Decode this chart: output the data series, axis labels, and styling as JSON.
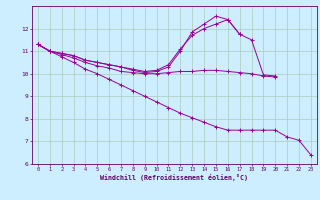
{
  "title": "",
  "xlabel": "Windchill (Refroidissement éolien,°C)",
  "ylabel": "",
  "background_color": "#cceeff",
  "line_color": "#990099",
  "grid_color": "#aaccbb",
  "xlim": [
    -0.5,
    23.5
  ],
  "ylim": [
    6,
    13
  ],
  "yticks": [
    6,
    7,
    8,
    9,
    10,
    11,
    12
  ],
  "xticks": [
    0,
    1,
    2,
    3,
    4,
    5,
    6,
    7,
    8,
    9,
    10,
    11,
    12,
    13,
    14,
    15,
    16,
    17,
    18,
    19,
    20,
    21,
    22,
    23
  ],
  "series": [
    {
      "x": [
        0,
        1,
        2,
        3,
        4,
        5,
        6,
        7,
        8,
        9,
        10,
        11,
        12,
        13,
        14,
        15,
        16,
        17,
        18,
        19,
        20
      ],
      "y": [
        11.3,
        11.0,
        10.9,
        10.8,
        10.6,
        10.5,
        10.4,
        10.3,
        10.2,
        10.1,
        10.15,
        10.4,
        11.1,
        11.7,
        12.0,
        12.2,
        12.4,
        11.75,
        11.5,
        9.95,
        9.9
      ]
    },
    {
      "x": [
        0,
        1,
        2,
        3,
        4,
        5,
        6,
        7,
        8,
        9,
        10,
        11,
        12,
        13,
        14,
        15,
        16,
        17
      ],
      "y": [
        11.3,
        11.0,
        10.9,
        10.8,
        10.6,
        10.5,
        10.4,
        10.3,
        10.15,
        10.05,
        10.1,
        10.3,
        11.0,
        11.85,
        12.2,
        12.55,
        12.4,
        11.75
      ]
    },
    {
      "x": [
        0,
        1,
        2,
        3,
        4,
        5,
        6,
        7,
        8,
        9,
        10,
        11,
        12,
        13,
        14,
        15,
        16,
        17,
        18,
        19,
        20
      ],
      "y": [
        11.3,
        11.0,
        10.85,
        10.7,
        10.5,
        10.35,
        10.25,
        10.1,
        10.05,
        10.0,
        10.0,
        10.05,
        10.1,
        10.1,
        10.15,
        10.15,
        10.1,
        10.05,
        10.0,
        9.9,
        9.85
      ]
    },
    {
      "x": [
        0,
        1,
        2,
        3,
        4,
        5,
        6,
        7,
        8,
        9,
        10,
        11,
        12,
        13,
        14,
        15,
        16,
        17,
        18,
        19,
        20,
        21,
        22,
        23
      ],
      "y": [
        11.3,
        11.0,
        10.75,
        10.5,
        10.2,
        10.0,
        9.75,
        9.5,
        9.25,
        9.0,
        8.75,
        8.5,
        8.25,
        8.05,
        7.85,
        7.65,
        7.5,
        7.5,
        7.5,
        7.5,
        7.5,
        7.2,
        7.05,
        6.4
      ]
    }
  ]
}
